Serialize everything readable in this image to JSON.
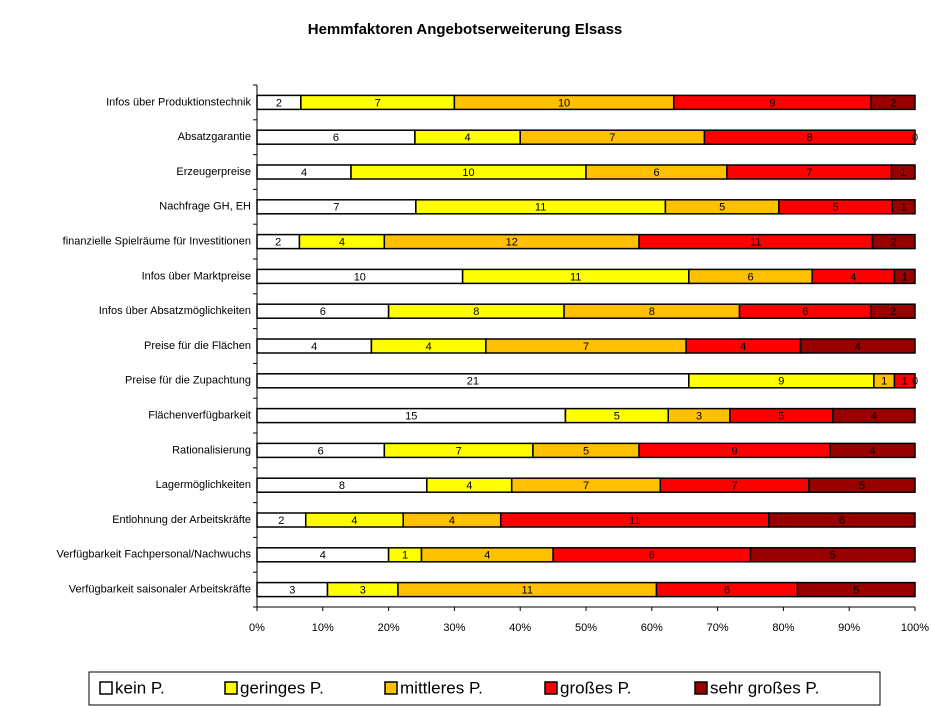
{
  "chart_data": {
    "type": "bar",
    "orientation": "horizontal",
    "stacking": "percent",
    "title": "Hemmfaktoren Angebotserweiterung Elsass",
    "categories": [
      "Infos über Produktionstechnik",
      "Absatzgarantie",
      "Erzeugerpreise",
      "Nachfrage GH, EH",
      "finanzielle Spielräume für Investitionen",
      "Infos über Marktpreise",
      "Infos über Absatzmöglichkeiten",
      "Preise für die Flächen",
      "Preise für die Zupachtung",
      "Flächenverfügbarkeit",
      "Rationalisierung",
      "Lagermöglichkeiten",
      "Entlohnung der Arbeitskräfte",
      "Verfügbarkeit Fachpersonal/Nachwuchs",
      "Verfügbarkeit saisonaler Arbeitskräfte"
    ],
    "series": [
      {
        "name": "kein P.",
        "color": "#ffffff",
        "values": [
          2,
          6,
          4,
          7,
          2,
          10,
          6,
          4,
          21,
          15,
          6,
          8,
          2,
          4,
          3
        ]
      },
      {
        "name": "geringes P.",
        "color": "#ffff00",
        "values": [
          7,
          4,
          10,
          11,
          4,
          11,
          8,
          4,
          9,
          5,
          7,
          4,
          4,
          1,
          3
        ]
      },
      {
        "name": "mittleres P.",
        "color": "#ffc000",
        "values": [
          10,
          7,
          6,
          5,
          12,
          6,
          8,
          7,
          1,
          3,
          5,
          7,
          4,
          4,
          11
        ]
      },
      {
        "name": "großes P.",
        "color": "#ff0000",
        "values": [
          9,
          8,
          7,
          5,
          11,
          4,
          6,
          4,
          1,
          5,
          9,
          7,
          11,
          6,
          6
        ]
      },
      {
        "name": "sehr großes P.",
        "color": "#990000",
        "values": [
          2,
          0,
          1,
          1,
          2,
          1,
          2,
          4,
          0,
          4,
          4,
          5,
          6,
          5,
          5
        ]
      }
    ],
    "xlim": [
      0,
      100
    ],
    "xticks": [
      {
        "value": 0,
        "label": "0%"
      },
      {
        "value": 10,
        "label": "10%"
      },
      {
        "value": 20,
        "label": "20%"
      },
      {
        "value": 30,
        "label": "30%"
      },
      {
        "value": 40,
        "label": "40%"
      },
      {
        "value": 50,
        "label": "50%"
      },
      {
        "value": 60,
        "label": "60%"
      },
      {
        "value": 70,
        "label": "70%"
      },
      {
        "value": 80,
        "label": "80%"
      },
      {
        "value": 90,
        "label": "90%"
      },
      {
        "value": 100,
        "label": "100%"
      }
    ],
    "legend": "bottom"
  }
}
